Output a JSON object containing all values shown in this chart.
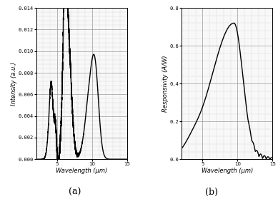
{
  "fig_width": 3.89,
  "fig_height": 2.79,
  "background_color": "#ffffff",
  "plot_a": {
    "xlabel": "Wavelength (μm)",
    "ylabel": "Intensity (a.u.)",
    "xlim": [
      2,
      15
    ],
    "ylim": [
      0,
      0.014
    ],
    "xticks": [
      5,
      10,
      15
    ],
    "yticks": [
      0.0,
      0.002,
      0.004,
      0.006,
      0.008,
      0.01,
      0.012,
      0.014
    ],
    "ytick_labels": [
      "0.000",
      "0.002",
      "0.004",
      "0.006",
      "0.008",
      "0.010",
      "0.012",
      "0.014"
    ],
    "label": "(a)",
    "line_color": "#000000",
    "line_width": 1.0
  },
  "plot_b": {
    "xlabel": "Wavelength (μm)",
    "ylabel": "Responsivity (A/W)",
    "xlim": [
      2,
      15
    ],
    "ylim": [
      0.0,
      0.8
    ],
    "xticks": [
      5,
      10,
      15
    ],
    "yticks": [
      0.0,
      0.2,
      0.4,
      0.6,
      0.8
    ],
    "ytick_labels": [
      "0.0",
      "0.2",
      "0.4",
      "0.6",
      "0.8"
    ],
    "label": "(b)",
    "line_color": "#000000",
    "line_width": 1.0
  }
}
